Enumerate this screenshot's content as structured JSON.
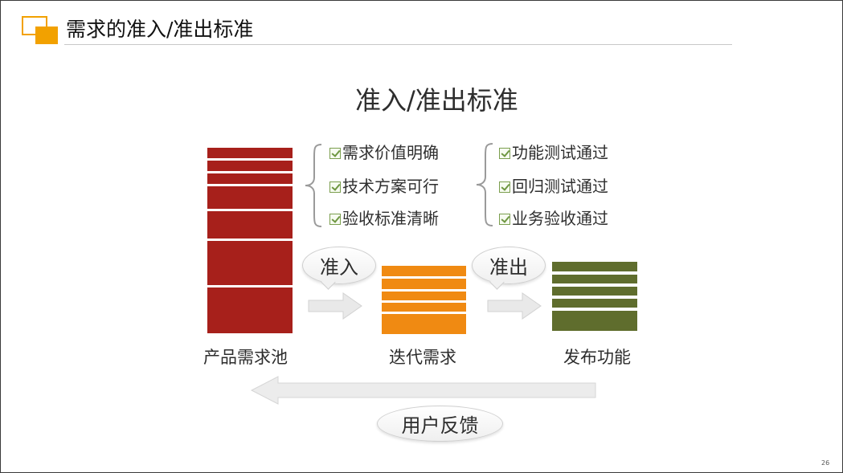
{
  "page": {
    "title": "需求的准入/准出标准",
    "slide_number": "26"
  },
  "diagram": {
    "title": "准入/准出标准",
    "entry_criteria": [
      "需求价值明确",
      "技术方案可行",
      "验收标准清晰"
    ],
    "exit_criteria": [
      "功能测试通过",
      "回归测试通过",
      "业务验收通过"
    ],
    "entry_label": "准入",
    "exit_label": "准出",
    "stages": [
      {
        "label": "产品需求池",
        "color": "#a7201b"
      },
      {
        "label": "迭代需求",
        "color": "#f08a12"
      },
      {
        "label": "发布功能",
        "color": "#5f6d2d"
      }
    ],
    "feedback_label": "用户反馈",
    "icons": [
      "check-icon",
      "right-arrow-icon",
      "left-arrow-icon"
    ]
  }
}
